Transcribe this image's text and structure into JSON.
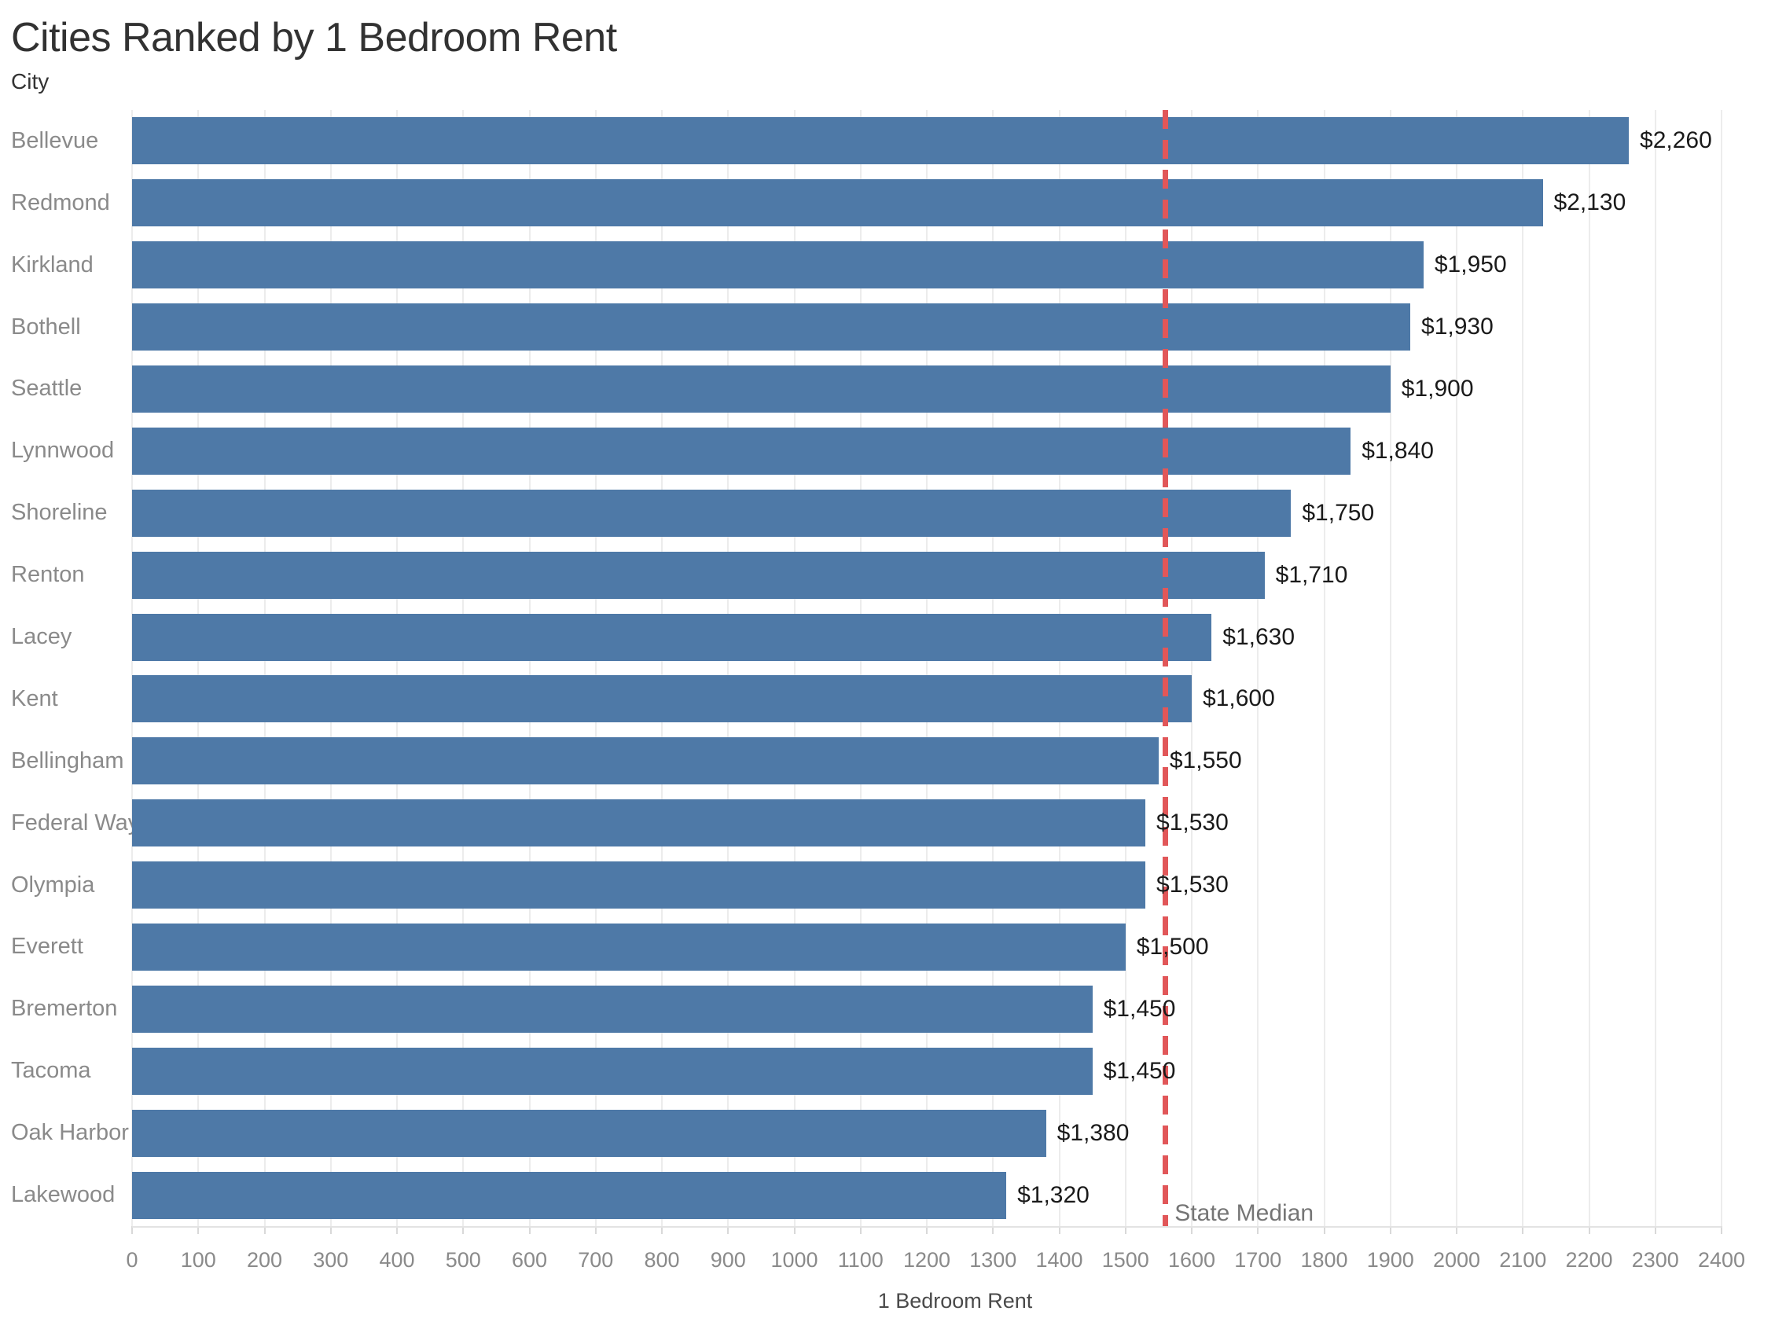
{
  "title": "Cities Ranked by 1 Bedroom Rent",
  "y_axis_header": "City",
  "x_axis_title": "1 Bedroom Rent",
  "reference_line_label": "State Median",
  "colors": {
    "bar": "#4E79A7",
    "reference_line": "#E15759",
    "gridline": "#ECECEC",
    "title_text": "#323232",
    "category_text": "#8A8A8A",
    "value_text": "#1A1A1A"
  },
  "chart_data": {
    "type": "bar",
    "orientation": "horizontal",
    "title": "Cities Ranked by 1 Bedroom Rent",
    "xlabel": "1 Bedroom Rent",
    "ylabel": "City",
    "xlim": [
      0,
      2400
    ],
    "tick_step": 100,
    "x_ticks": [
      0,
      100,
      200,
      300,
      400,
      500,
      600,
      700,
      800,
      900,
      1000,
      1100,
      1200,
      1300,
      1400,
      1500,
      1600,
      1700,
      1800,
      1900,
      2000,
      2100,
      2200,
      2300,
      2400
    ],
    "grid": "vertical",
    "legend": "none",
    "categories": [
      "Bellevue",
      "Redmond",
      "Kirkland",
      "Bothell",
      "Seattle",
      "Lynnwood",
      "Shoreline",
      "Renton",
      "Lacey",
      "Kent",
      "Bellingham",
      "Federal Way",
      "Olympia",
      "Everett",
      "Bremerton",
      "Tacoma",
      "Oak Harbor",
      "Lakewood"
    ],
    "values": [
      2260,
      2130,
      1950,
      1930,
      1900,
      1840,
      1750,
      1710,
      1630,
      1600,
      1550,
      1530,
      1530,
      1500,
      1450,
      1450,
      1380,
      1320
    ],
    "value_labels": [
      "$2,260",
      "$2,130",
      "$1,950",
      "$1,930",
      "$1,900",
      "$1,840",
      "$1,750",
      "$1,710",
      "$1,630",
      "$1,600",
      "$1,550",
      "$1,530",
      "$1,530",
      "$1,500",
      "$1,450",
      "$1,450",
      "$1,380",
      "$1,320"
    ],
    "reference_line": {
      "label": "State Median",
      "value": 1560
    }
  }
}
